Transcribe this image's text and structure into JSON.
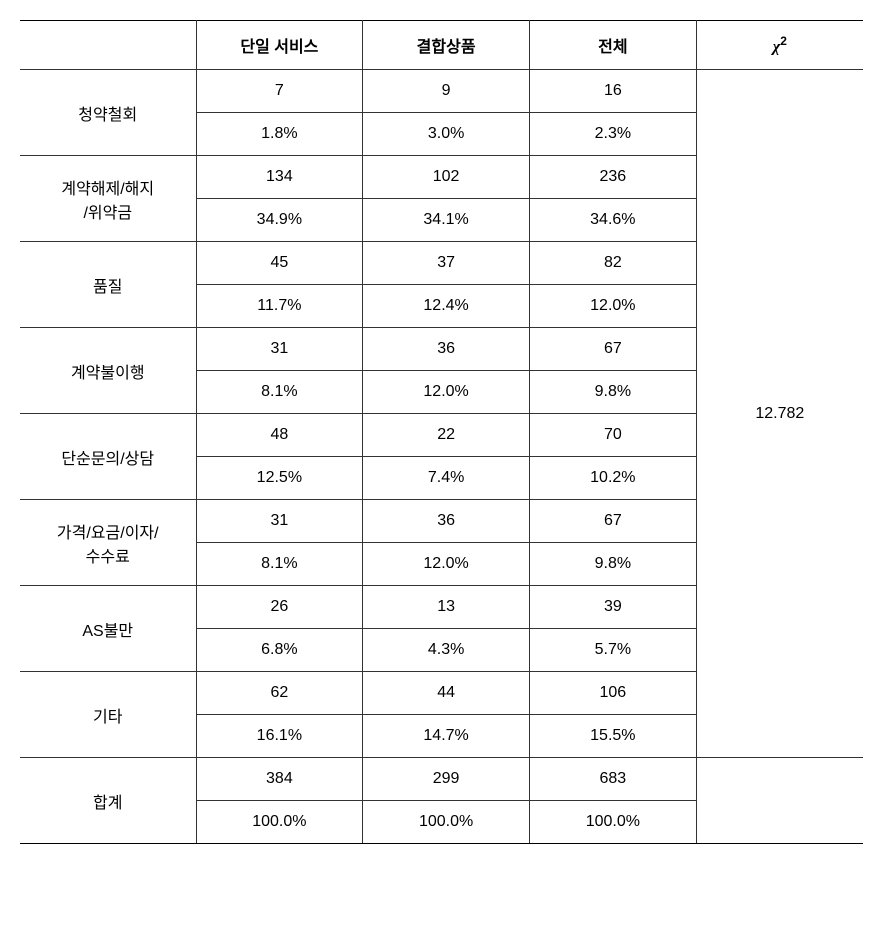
{
  "table": {
    "header": {
      "col1_label": "",
      "col2_label": "단일 서비스",
      "col3_label": "결합상품",
      "col4_label": "전체",
      "col5_label_chi": "χ",
      "col5_label_sup": "2"
    },
    "rows": [
      {
        "label": "청약철회",
        "count": {
          "c1": "7",
          "c2": "9",
          "c3": "16"
        },
        "pct": {
          "c1": "1.8%",
          "c2": "3.0%",
          "c3": "2.3%"
        }
      },
      {
        "label": "계약해제/해지/위약금",
        "count": {
          "c1": "134",
          "c2": "102",
          "c3": "236"
        },
        "pct": {
          "c1": "34.9%",
          "c2": "34.1%",
          "c3": "34.6%"
        }
      },
      {
        "label": "품질",
        "count": {
          "c1": "45",
          "c2": "37",
          "c3": "82"
        },
        "pct": {
          "c1": "11.7%",
          "c2": "12.4%",
          "c3": "12.0%"
        }
      },
      {
        "label": "계약불이행",
        "count": {
          "c1": "31",
          "c2": "36",
          "c3": "67"
        },
        "pct": {
          "c1": "8.1%",
          "c2": "12.0%",
          "c3": "9.8%"
        }
      },
      {
        "label": "단순문의/상담",
        "count": {
          "c1": "48",
          "c2": "22",
          "c3": "70"
        },
        "pct": {
          "c1": "12.5%",
          "c2": "7.4%",
          "c3": "10.2%"
        }
      },
      {
        "label": "가격/요금/이자/수수료",
        "count": {
          "c1": "31",
          "c2": "36",
          "c3": "67"
        },
        "pct": {
          "c1": "8.1%",
          "c2": "12.0%",
          "c3": "9.8%"
        }
      },
      {
        "label": "AS불만",
        "count": {
          "c1": "26",
          "c2": "13",
          "c3": "39"
        },
        "pct": {
          "c1": "6.8%",
          "c2": "4.3%",
          "c3": "5.7%"
        }
      },
      {
        "label": "기타",
        "count": {
          "c1": "62",
          "c2": "44",
          "c3": "106"
        },
        "pct": {
          "c1": "16.1%",
          "c2": "14.7%",
          "c3": "15.5%"
        }
      }
    ],
    "total": {
      "label": "합계",
      "count": {
        "c1": "384",
        "c2": "299",
        "c3": "683"
      },
      "pct": {
        "c1": "100.0%",
        "c2": "100.0%",
        "c3": "100.0%"
      }
    },
    "chi2_value": "12.782",
    "styling": {
      "font_size": 16,
      "border_color": "#333333",
      "outer_border_color": "#000000",
      "background_color": "#ffffff",
      "text_color": "#000000",
      "col_widths_pct": [
        19,
        18,
        18,
        18,
        18
      ]
    }
  }
}
